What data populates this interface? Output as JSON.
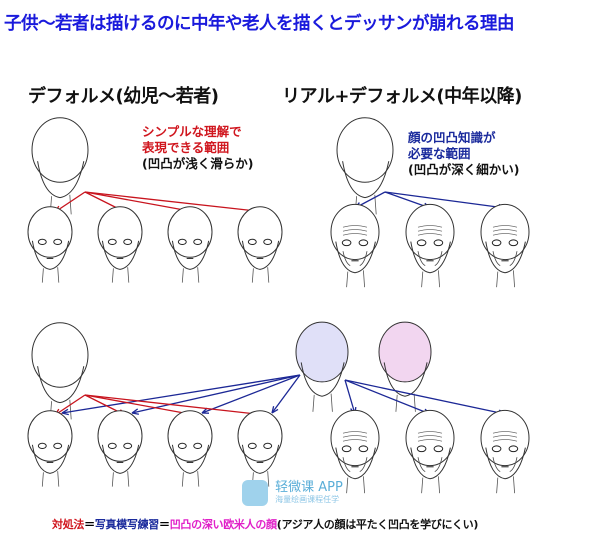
{
  "title": "子供〜若者は描けるのに中年や老人を描くとデッサンが崩れる理由",
  "left_heading": "デフォルメ(幼児〜若者)",
  "right_heading": "リアル+デフォルメ(中年以降)",
  "left_note": {
    "line1": "シンプルな理解で",
    "line2": "表現できる範囲",
    "line3": "(凹凸が浅く滑らか)"
  },
  "right_note": {
    "line1": "顔の凹凸知識が",
    "line2": "必要な範囲",
    "line3": "(凹凸が深く細かい)"
  },
  "bottom": {
    "part1": "対処法",
    "eq1": "＝",
    "part2": "写真模写練習",
    "eq2": "＝",
    "part3": "凹凸の深い欧米人の顔",
    "part4": "(アジア人の顔は平たく凹凸を学びにくい)"
  },
  "watermark": {
    "name": "轻微课 APP",
    "tagline": "海量绘画课程任学"
  },
  "colors": {
    "title": "#1a1adc",
    "red": "#d0161e",
    "blue": "#1a2a9c",
    "magenta": "#e020c8",
    "arrow_red": "#c8141e",
    "arrow_blue": "#1c2896"
  }
}
